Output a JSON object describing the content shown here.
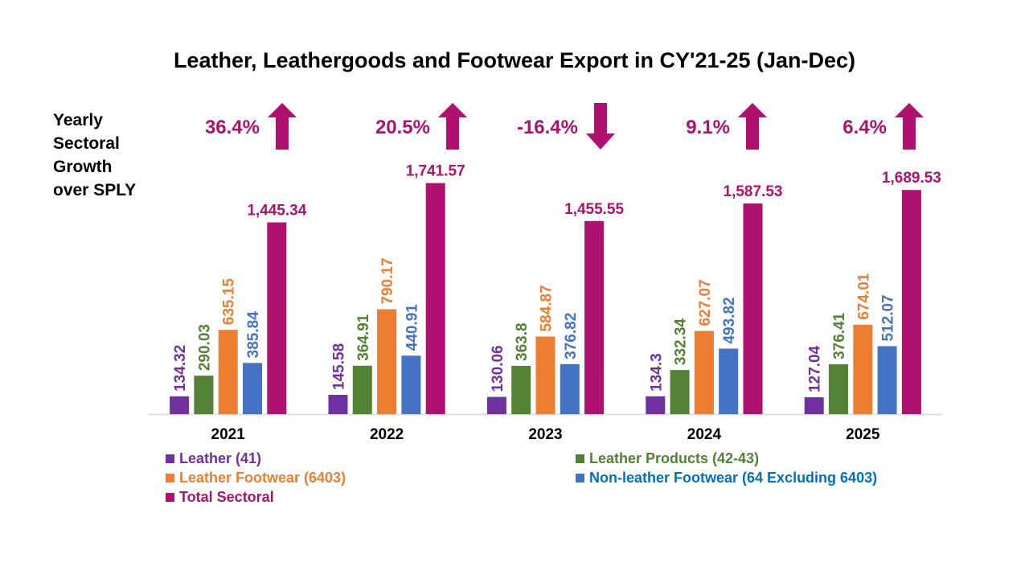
{
  "chart_data": {
    "type": "bar",
    "title": "Leather, Leathergoods and Footwear Export in CY'21-25 (Jan-Dec)",
    "categories": [
      "2021",
      "2022",
      "2023",
      "2024",
      "2025"
    ],
    "ylim": [
      0,
      2000
    ],
    "grid": false,
    "legend_placement": "bottom",
    "series": [
      {
        "name": "Leather (41)",
        "color": "#7030A0",
        "label_color": "#7030A0",
        "values": [
          134.32,
          145.58,
          130.06,
          134.3,
          127.04
        ],
        "labels": [
          "134.32",
          "145.58",
          "130.06",
          "134.3",
          "127.04"
        ]
      },
      {
        "name": "Leather Products (42-43)",
        "color": "#548235",
        "label_color": "#548235",
        "values": [
          290.03,
          364.91,
          363.8,
          332.34,
          376.41
        ],
        "labels": [
          "290.03",
          "364.91",
          "363.8",
          "332.34",
          "376.41"
        ]
      },
      {
        "name": "Leather Footwear (6403)",
        "color": "#ED7D31",
        "label_color": "#ED7D31",
        "values": [
          635.15,
          790.17,
          584.87,
          627.07,
          674.01
        ],
        "labels": [
          "635.15",
          "790.17",
          "584.87",
          "627.07",
          "674.01"
        ]
      },
      {
        "name": "Non-leather Footwear (64 Excluding 6403)",
        "color": "#4472C4",
        "label_color": "#4472C4",
        "legend_color": "#0070C0",
        "values": [
          385.84,
          440.91,
          376.82,
          493.82,
          512.07
        ],
        "labels": [
          "385.84",
          "440.91",
          "376.82",
          "493.82",
          "512.07"
        ]
      },
      {
        "name": "Total Sectoral",
        "color": "#B0106F",
        "label_color": "#B0106F",
        "values": [
          1445.34,
          1741.57,
          1455.55,
          1587.53,
          1689.53
        ],
        "labels": [
          "1,445.34",
          "1,741.57",
          "1,455.55",
          "1,587.53",
          "1,689.53"
        ]
      }
    ],
    "annotations": {
      "label": "Yearly Sectoral Growth over SPLY",
      "growth": [
        {
          "text": "36.4%",
          "direction": "up"
        },
        {
          "text": "20.5%",
          "direction": "up"
        },
        {
          "text": "-16.4%",
          "direction": "down"
        },
        {
          "text": "9.1%",
          "direction": "up"
        },
        {
          "text": "6.4%",
          "direction": "up"
        }
      ],
      "color": "#B0106F"
    }
  }
}
